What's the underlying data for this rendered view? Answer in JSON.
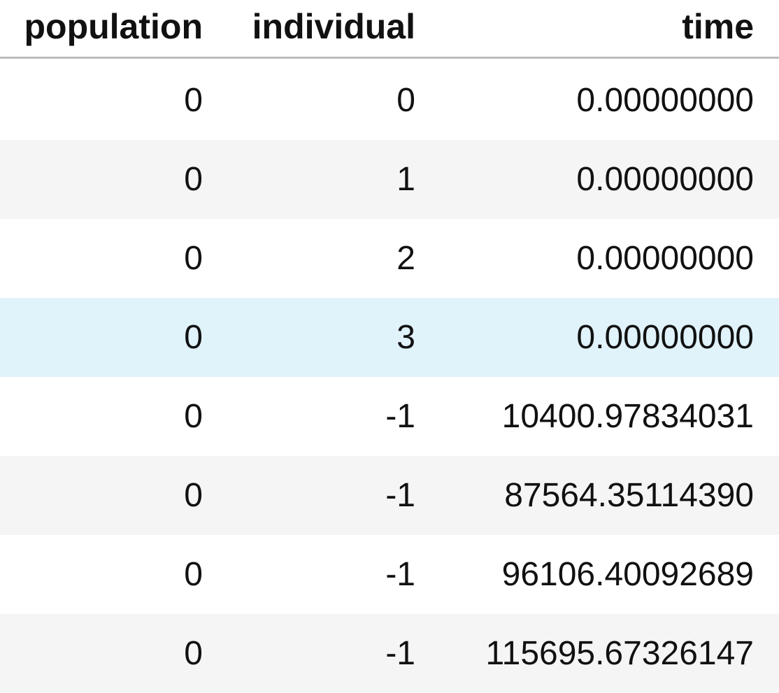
{
  "table": {
    "columns": [
      "population",
      "individual",
      "time"
    ],
    "rows": [
      {
        "population": "0",
        "individual": "0",
        "time": "0.00000000",
        "background": "#ffffff"
      },
      {
        "population": "0",
        "individual": "1",
        "time": "0.00000000",
        "background": "#f5f5f5"
      },
      {
        "population": "0",
        "individual": "2",
        "time": "0.00000000",
        "background": "#ffffff"
      },
      {
        "population": "0",
        "individual": "3",
        "time": "0.00000000",
        "background": "#e0f2fa"
      },
      {
        "population": "0",
        "individual": "-1",
        "time": "10400.97834031",
        "background": "#ffffff"
      },
      {
        "population": "0",
        "individual": "-1",
        "time": "87564.35114390",
        "background": "#f5f5f5"
      },
      {
        "population": "0",
        "individual": "-1",
        "time": "96106.40092689",
        "background": "#ffffff"
      },
      {
        "population": "0",
        "individual": "-1",
        "time": "115695.67326147",
        "background": "#f5f5f5"
      }
    ]
  }
}
